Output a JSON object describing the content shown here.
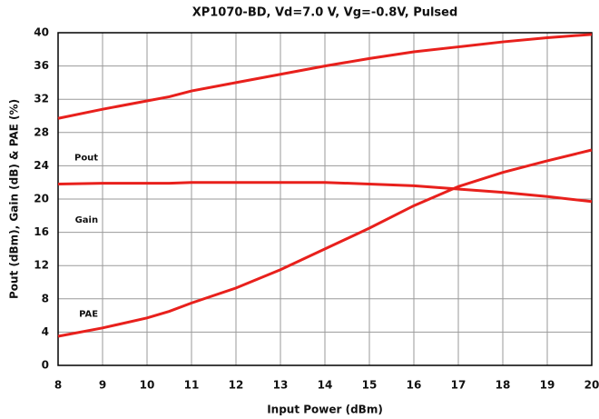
{
  "chart_data": {
    "type": "line",
    "title": "XP1070-BD, Vd=7.0 V, Vg=-0.8V, Pulsed",
    "x_label": "Input Power (dBm)",
    "y_label": "Pout (dBm), Gain (dB) & PAE (%)",
    "x": [
      8,
      9,
      10,
      10.5,
      11,
      12,
      13,
      14,
      15,
      16,
      17,
      18,
      19,
      20
    ],
    "series": [
      {
        "name": "Pout",
        "color": "#e8201c",
        "values": [
          29.7,
          30.8,
          31.8,
          32.3,
          33,
          34,
          35,
          36,
          36.9,
          37.7,
          38.3,
          38.9,
          39.4,
          39.8
        ]
      },
      {
        "name": "Gain",
        "color": "#e8201c",
        "values": [
          21.8,
          21.9,
          21.9,
          21.9,
          22,
          22,
          22,
          22,
          21.8,
          21.6,
          21.2,
          20.8,
          20.3,
          19.7
        ]
      },
      {
        "name": "PAE",
        "color": "#e8201c",
        "values": [
          3.5,
          4.5,
          5.7,
          6.5,
          7.5,
          9.3,
          11.5,
          14,
          16.5,
          19.2,
          21.5,
          23.2,
          24.6,
          25.9
        ]
      }
    ],
    "xlim": [
      8,
      20
    ],
    "xticks": [
      8,
      9,
      10,
      11,
      12,
      13,
      14,
      15,
      16,
      17,
      18,
      19,
      20
    ],
    "ylim": [
      0,
      40
    ],
    "yticks": [
      0,
      4,
      8,
      12,
      16,
      20,
      24,
      28,
      32,
      36,
      40
    ],
    "grid": true
  }
}
